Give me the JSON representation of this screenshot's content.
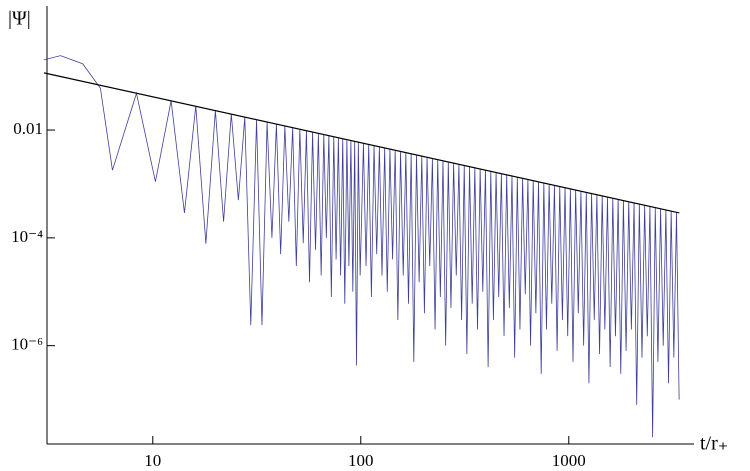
{
  "chart_data": {
    "type": "line",
    "y_label": "|Ψ|",
    "x_label": "t/r₊",
    "x_scale": "log",
    "y_scale": "log",
    "xlim": [
      3,
      4000
    ],
    "ylim": [
      1.5e-08,
      2
    ],
    "xticks": [
      10,
      100,
      1000
    ],
    "yticks": [
      0.01,
      {
        "value": 0.0001,
        "label": "10⁻⁴"
      },
      {
        "value": 1e-06,
        "label": "10⁻⁶"
      }
    ],
    "series": [
      {
        "color": "#3f3f99",
        "x": [
          3,
          3.6,
          4.6,
          5.6,
          6.4,
          8.35,
          10.3,
          12.25,
          14.2,
          16.1,
          18,
          20,
          21.9,
          23.85,
          25.8,
          27.7,
          29.6,
          31.55,
          33.5,
          35.45,
          37.4,
          39.3,
          41.2,
          43.15,
          45.1,
          47.05,
          49,
          50.95,
          52.9,
          54.8,
          56.7,
          58.65,
          60.6,
          62.55,
          64.5,
          66.4,
          68.3,
          70.25,
          72.2,
          74.15,
          76.1,
          78.05,
          80,
          81.9,
          83.8,
          85.75,
          87.7,
          89.65,
          91.6,
          93.5,
          95.4,
          97.35,
          99.3,
          103,
          106,
          109.2,
          112.5,
          115.8,
          119.3,
          122.9,
          126.5,
          130.3,
          134.1,
          138.1,
          142.2,
          146.4,
          150.8,
          155.3,
          160,
          164.7,
          169.6,
          174.7,
          179.9,
          185.3,
          190.8,
          196.5,
          202.3,
          208.3,
          214.6,
          221,
          227.6,
          234.4,
          241.3,
          248.5,
          255.9,
          263.5,
          271.4,
          279.5,
          287.8,
          296.4,
          305.3,
          314.4,
          323.7,
          333.3,
          343.3,
          353.5,
          364.1,
          374.9,
          386.1,
          397.6,
          409.5,
          421.7,
          434.3,
          447.2,
          460.5,
          474.2,
          488.4,
          502.9,
          517.9,
          533.3,
          549.3,
          565.7,
          582.5,
          599.9,
          617.7,
          636.1,
          655.1,
          674.6,
          694.7,
          715.4,
          736.8,
          758.7,
          781.3,
          804.6,
          828.6,
          853.3,
          878.7,
          904.9,
          931.9,
          959.7,
          988.3,
          1018,
          1048,
          1079,
          1111,
          1144,
          1179,
          1214,
          1250,
          1287,
          1326,
          1365,
          1406,
          1448,
          1491,
          1535,
          1581,
          1628,
          1677,
          1727,
          1778,
          1831,
          1886,
          1942,
          2000,
          2060,
          2121,
          2184,
          2249,
          2316,
          2385,
          2456,
          2530,
          2605,
          2683,
          2763,
          2845,
          2930,
          3017,
          3107,
          3200,
          3295,
          3393
        ],
        "values": [
          0.2,
          0.24,
          0.17,
          0.06,
          0.0018,
          0.048,
          0.0011,
          0.035,
          0.00029,
          0.028,
          7.8e-05,
          0.023,
          0.0002,
          0.02,
          0.0005,
          0.0174,
          2.4e-06,
          0.0156,
          2.4e-06,
          0.0141,
          0.0001,
          0.0129,
          5e-05,
          0.0119,
          0.0002,
          0.0111,
          3e-05,
          0.0104,
          8e-05,
          0.0098,
          1.5e-05,
          0.0092,
          6e-05,
          0.0087,
          2e-05,
          0.0083,
          0.0001,
          0.0079,
          8e-06,
          0.0075,
          4e-05,
          0.0072,
          2e-05,
          0.0069,
          6e-06,
          0.0067,
          3e-05,
          0.0064,
          1e-05,
          0.0062,
          4.3e-07,
          0.006,
          2e-05,
          0.0057,
          3e-05,
          0.00542,
          8e-06,
          0.00516,
          5e-05,
          0.00491,
          2e-05,
          0.00467,
          1e-05,
          0.00444,
          4e-05,
          0.00422,
          3e-06,
          0.00402,
          2e-05,
          0.00382,
          6e-06,
          0.00364,
          5e-07,
          0.00346,
          1.5e-05,
          0.00329,
          4e-06,
          0.00313,
          3e-05,
          0.00298,
          2e-06,
          0.00283,
          8e-06,
          0.0027,
          1e-06,
          0.00256,
          5e-06,
          0.00244,
          2e-05,
          0.00232,
          3e-06,
          0.00221,
          7e-07,
          0.0021,
          6e-06,
          0.002,
          2e-06,
          0.0019,
          1e-05,
          0.00181,
          4e-07,
          0.00172,
          3e-06,
          0.00164,
          8e-06,
          0.00156,
          1.5e-06,
          0.00148,
          5e-06,
          0.00141,
          6e-07,
          0.00134,
          2e-06,
          0.00128,
          9e-06,
          0.00121,
          1e-06,
          0.00115,
          4e-06,
          0.0011,
          3e-07,
          0.00104,
          2e-06,
          0.00099,
          6e-06,
          0.00094,
          8e-07,
          0.0009,
          3e-06,
          0.00085,
          1.5e-06,
          0.00081,
          5e-07,
          0.00077,
          4e-06,
          0.00074,
          1e-06,
          0.0007,
          2e-07,
          0.00067,
          3e-06,
          0.00063,
          7e-07,
          0.0006,
          2e-06,
          0.00057,
          4e-07,
          0.00054,
          1.5e-06,
          0.00052,
          3e-07,
          0.00049,
          8e-07,
          0.00047,
          2e-06,
          0.00045,
          8e-08,
          0.00042,
          6e-07,
          0.0004,
          1.5e-06,
          0.00038,
          2e-08,
          0.00036,
          5e-07,
          0.00035,
          1e-06,
          0.00033,
          2e-07,
          0.00031,
          6e-07,
          0.0003,
          1e-07
        ]
      },
      {
        "color": "#000000",
        "x": [
          3,
          3400
        ],
        "values": [
          0.115,
          0.00029
        ]
      }
    ]
  }
}
